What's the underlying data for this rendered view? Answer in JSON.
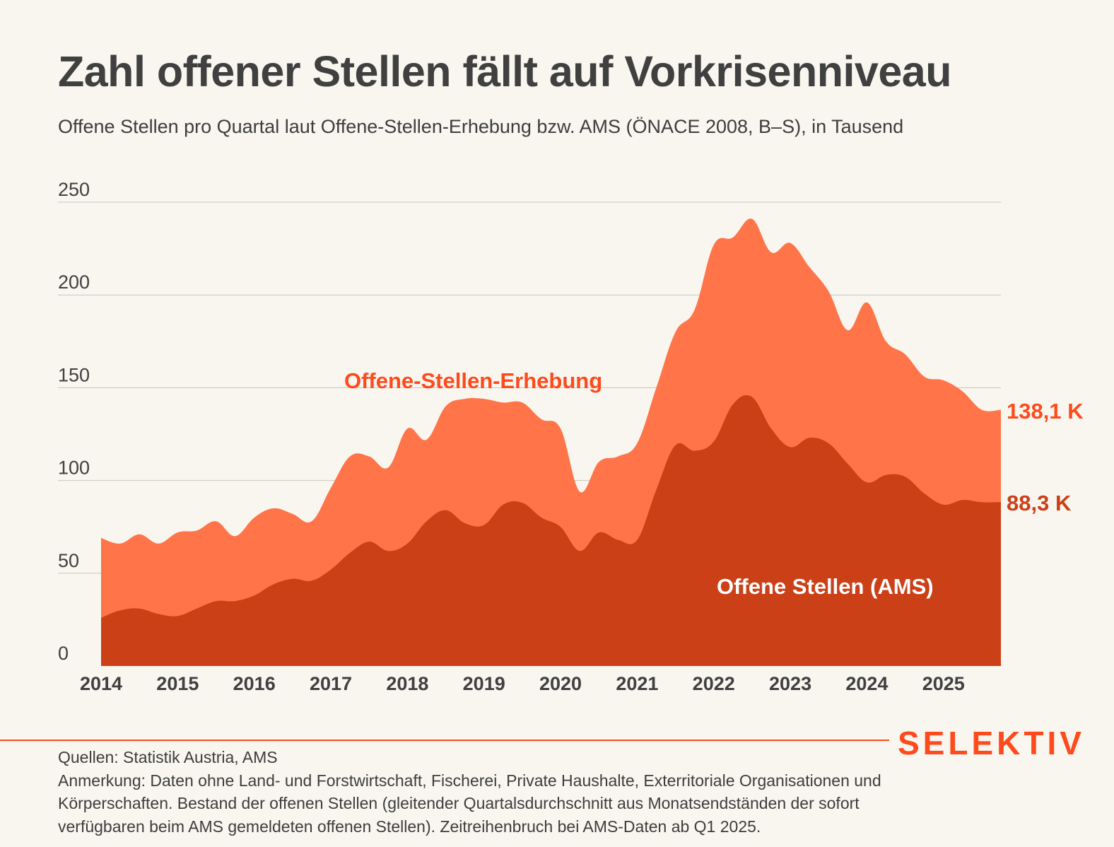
{
  "title": "Zahl offener Stellen fällt auf Vorkrisenniveau",
  "subtitle": "Offene Stellen pro Quartal laut Offene-Stellen-Erhebung bzw. AMS (ÖNACE 2008, B–S), in Tausend",
  "brand": "SELEKTIV",
  "footer": {
    "sources": "Quellen: Statistik Austria, AMS",
    "note_line1": "Anmerkung: Daten ohne Land- und Forstwirtschaft, Fischerei, Private Haushalte, Exterritoriale Organisationen und",
    "note_line2": "Körperschaften. Bestand der offenen Stellen (gleitender Quartalsdurchschnitt aus Monatsendständen der sofort",
    "note_line3": "verfügbaren beim AMS gemeldeten offenen Stellen). Zeitreihenbruch bei AMS-Daten ab Q1 2025."
  },
  "chart_data": {
    "type": "area",
    "ylim": [
      0,
      250
    ],
    "xlim": [
      2014,
      2025.75
    ],
    "yticks": [
      "0",
      "50",
      "100",
      "150",
      "200",
      "250"
    ],
    "xticks": [
      "2014",
      "2015",
      "2016",
      "2017",
      "2018",
      "2019",
      "2020",
      "2021",
      "2022",
      "2023",
      "2024",
      "2025"
    ],
    "grid": true,
    "colors": {
      "oser": "#ff7449",
      "ams": "#cb4017",
      "end_label_oser": "#fe4a1c",
      "end_label_ams": "#cb4017"
    },
    "x": [
      2014.0,
      2014.25,
      2014.5,
      2014.75,
      2015.0,
      2015.25,
      2015.5,
      2015.75,
      2016.0,
      2016.25,
      2016.5,
      2016.75,
      2017.0,
      2017.25,
      2017.5,
      2017.75,
      2018.0,
      2018.25,
      2018.5,
      2018.75,
      2019.0,
      2019.25,
      2019.5,
      2019.75,
      2020.0,
      2020.25,
      2020.5,
      2020.75,
      2021.0,
      2021.25,
      2021.5,
      2021.75,
      2022.0,
      2022.25,
      2022.5,
      2022.75,
      2023.0,
      2023.25,
      2023.5,
      2023.75,
      2024.0,
      2024.25,
      2024.5,
      2024.75,
      2025.0,
      2025.25,
      2025.5,
      2025.75
    ],
    "series": [
      {
        "name": "Offene-Stellen-Erhebung",
        "values": [
          69,
          66,
          71,
          66,
          72,
          73,
          78,
          70,
          80,
          85,
          82,
          78,
          96,
          113,
          113,
          107,
          128,
          122,
          140,
          144,
          144,
          142,
          142,
          133,
          128,
          94,
          110,
          113,
          120,
          150,
          180,
          192,
          227,
          231,
          241,
          223,
          228,
          215,
          202,
          181,
          196,
          175,
          168,
          156,
          154,
          148,
          138.1,
          138.1
        ],
        "end_label": "138,1 K"
      },
      {
        "name": "Offene Stellen (AMS)",
        "values": [
          26,
          30,
          31,
          28,
          27,
          31,
          35,
          35,
          38,
          44,
          47,
          46,
          52,
          61,
          67,
          62,
          66,
          78,
          84,
          77,
          76,
          87,
          88,
          80,
          75,
          62,
          72,
          68,
          68,
          95,
          119,
          116,
          121,
          141,
          145,
          128,
          118,
          123,
          120,
          109,
          99,
          103,
          102,
          93,
          87,
          89.5,
          88.3,
          88.3
        ],
        "end_label": "88,3 K"
      }
    ]
  }
}
